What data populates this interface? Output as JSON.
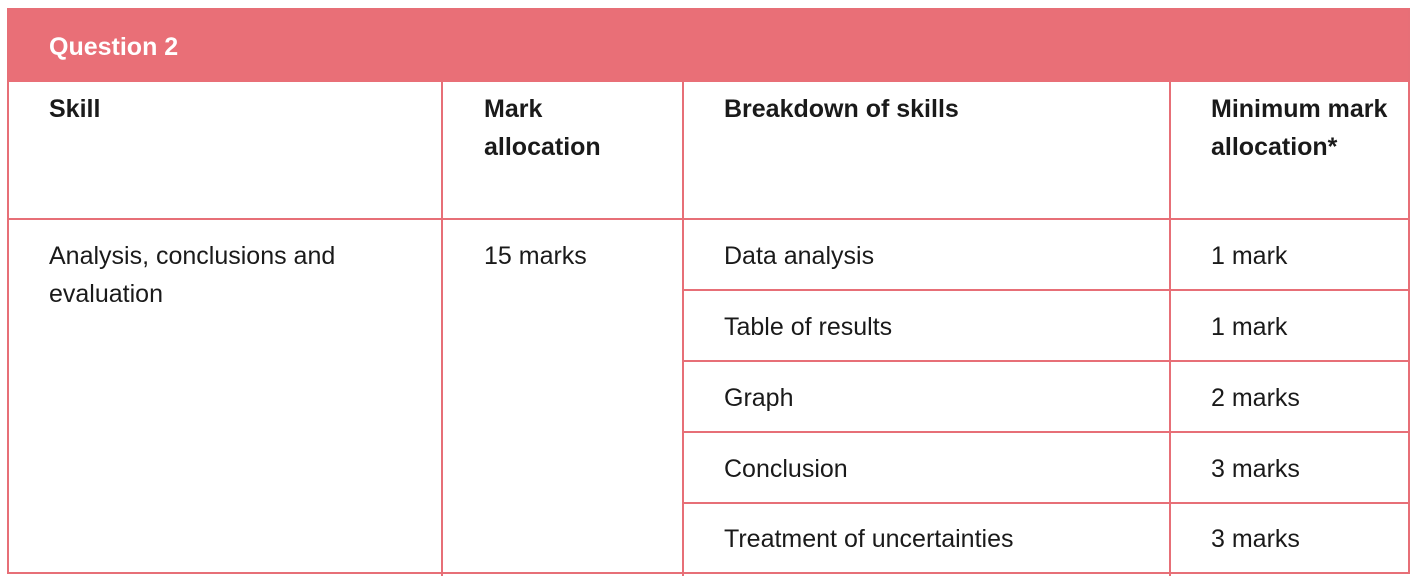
{
  "title": "Question 2",
  "headers": {
    "skill": "Skill",
    "mark_allocation": "Mark allocation",
    "breakdown": "Breakdown of skills",
    "minimum": "Minimum mark allocation*"
  },
  "row": {
    "skill": "Analysis, conclusions and evaluation",
    "mark_allocation": "15 marks",
    "breakdown": [
      {
        "skill": "Data analysis",
        "marks": "1 mark"
      },
      {
        "skill": "Table of results",
        "marks": "1 mark"
      },
      {
        "skill": "Graph",
        "marks": "2 marks"
      },
      {
        "skill": "Conclusion",
        "marks": "3 marks"
      },
      {
        "skill": "Treatment of uncertainties",
        "marks": "3 marks"
      }
    ]
  },
  "colors": {
    "accent": "#e96f77",
    "border": "#e76f77",
    "title_text": "#ffffff",
    "body_text": "#1a1a1a"
  }
}
